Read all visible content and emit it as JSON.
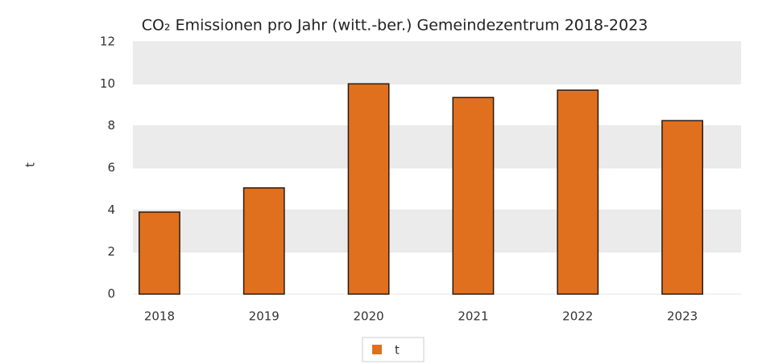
{
  "chart_data": {
    "type": "bar",
    "title": "CO₂ Emissionen pro Jahr (witt.-ber.) Gemeindezentrum 2018-2023",
    "y_label": "t",
    "categories": [
      "2018",
      "2019",
      "2020",
      "2021",
      "2022",
      "2023"
    ],
    "series": [
      {
        "name": "t",
        "color": "#e0701e",
        "values": [
          3.9,
          5.05,
          10.0,
          9.35,
          9.7,
          8.25
        ]
      }
    ],
    "ylim": [
      0,
      12
    ],
    "yticks": [
      0,
      2,
      4,
      6,
      8,
      10,
      12
    ],
    "grid_bands": true,
    "legend": "bottom"
  }
}
